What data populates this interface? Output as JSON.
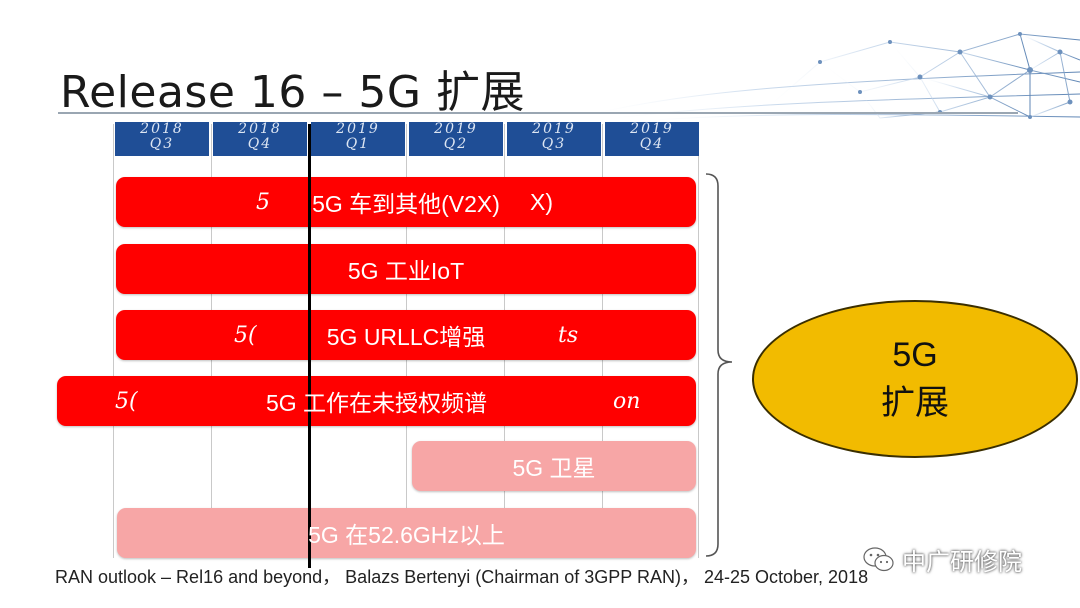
{
  "title": "Release 16 – 5G 扩展",
  "quarters": [
    {
      "year": "2018",
      "q": "Q3"
    },
    {
      "year": "2018",
      "q": "Q4"
    },
    {
      "year": "2019",
      "q": "Q1"
    },
    {
      "year": "2019",
      "q": "Q2"
    },
    {
      "year": "2019",
      "q": "Q3"
    },
    {
      "year": "2019",
      "q": "Q4"
    }
  ],
  "bars": [
    {
      "label": "5G 车到其他(V2X)",
      "ghost_left": "5",
      "ghost_right": "X)",
      "color": "#ff0000"
    },
    {
      "label": "5G 工业IoT",
      "color": "#ff0000"
    },
    {
      "label": "5G URLLC增强",
      "ghost_left": "5(",
      "ghost_right": "ts",
      "color": "#ff0000"
    },
    {
      "label": "5G 工作在未授权频谱",
      "ghost_left": "5(",
      "ghost_right": "on",
      "color": "#ff0000"
    },
    {
      "label": "5G 卫星",
      "color": "#f7a6a6"
    },
    {
      "label": "5G 在52.6GHz以上",
      "color": "#f7a6a6"
    }
  ],
  "summary": {
    "line1": "5G",
    "line2": "扩展",
    "color": "#f2bb00"
  },
  "source": "RAN outlook – Rel16 and beyond， Balazs Bertenyi (Chairman of 3GPP RAN)， 24-25 October, 2018",
  "watermark": {
    "text": "中广研修院",
    "icon": "wechat-icon"
  }
}
